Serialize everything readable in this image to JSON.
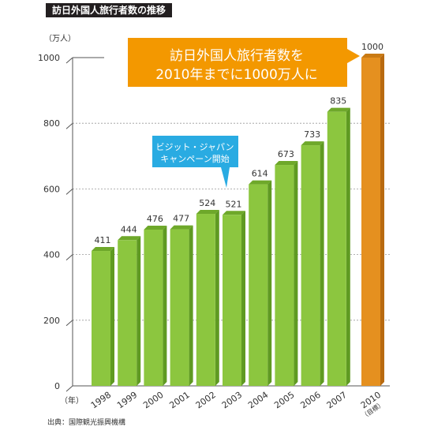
{
  "title": "訪日外国人旅行者数の推移",
  "source": "出典：国際観光振興機構",
  "colors": {
    "actual": "#8cc63f",
    "target": "#e5901f",
    "callout_blue": "#29abe2",
    "callout_orange": "#f39800"
  },
  "chart_data": {
    "type": "bar",
    "y_unit": "（万人）",
    "x_unit": "（年）",
    "ylim": [
      0,
      1000
    ],
    "y_ticks": [
      "0",
      "200",
      "400",
      "600",
      "800",
      "1000"
    ],
    "categories": [
      "1998",
      "1999",
      "2000",
      "2001",
      "2002",
      "2003",
      "2004",
      "2005",
      "2006",
      "2007",
      "2010"
    ],
    "values": [
      411,
      444,
      476,
      477,
      524,
      521,
      614,
      673,
      733,
      835,
      1000
    ],
    "value_labels": [
      "411",
      "444",
      "476",
      "477",
      "524",
      "521",
      "614",
      "673",
      "733",
      "835",
      "1000"
    ],
    "target_note": "（目標）",
    "annotations": [
      {
        "lines": [
          "ビジット・ジャパン",
          "キャンペーン開始"
        ]
      },
      {
        "lines": [
          "訪日外国人旅行者数を",
          "2010年までに1000万人に"
        ]
      }
    ]
  }
}
